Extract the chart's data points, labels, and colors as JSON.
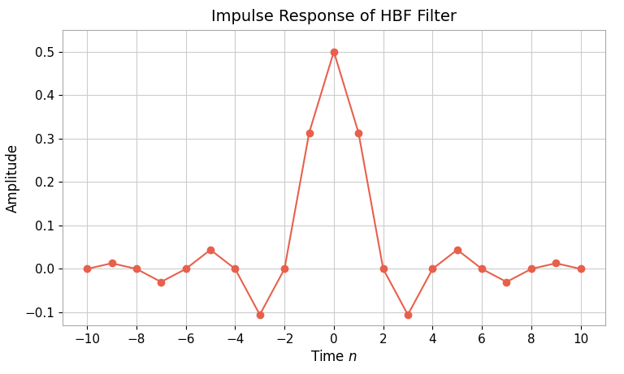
{
  "title": "Impulse Response of HBF Filter",
  "xlabel": "Time $n$",
  "ylabel": "Amplitude",
  "line_color": "#E8604C",
  "marker_color": "#E8604C",
  "background_color": "#ffffff",
  "grid_color": "#cccccc",
  "xlim": [
    -11,
    11
  ],
  "ylim": [
    -0.13,
    0.55
  ],
  "xticks": [
    -10,
    -8,
    -6,
    -4,
    -2,
    0,
    2,
    4,
    6,
    8,
    10
  ],
  "n": [
    -10,
    -9,
    -8,
    -7,
    -6,
    -5,
    -4,
    -3,
    -2,
    -1,
    0,
    1,
    2,
    3,
    4,
    5,
    6,
    7,
    8,
    9,
    10
  ],
  "h": [
    0.0,
    0.013,
    0.0,
    -0.03,
    0.0,
    0.044,
    0.0,
    -0.1055,
    0.0,
    0.3133,
    0.5,
    0.3133,
    0.0,
    -0.1055,
    0.0,
    0.044,
    0.0,
    -0.03,
    0.0,
    0.013,
    0.0
  ],
  "title_fontsize": 14,
  "label_fontsize": 12,
  "tick_fontsize": 11,
  "linewidth": 1.5,
  "markersize": 6
}
